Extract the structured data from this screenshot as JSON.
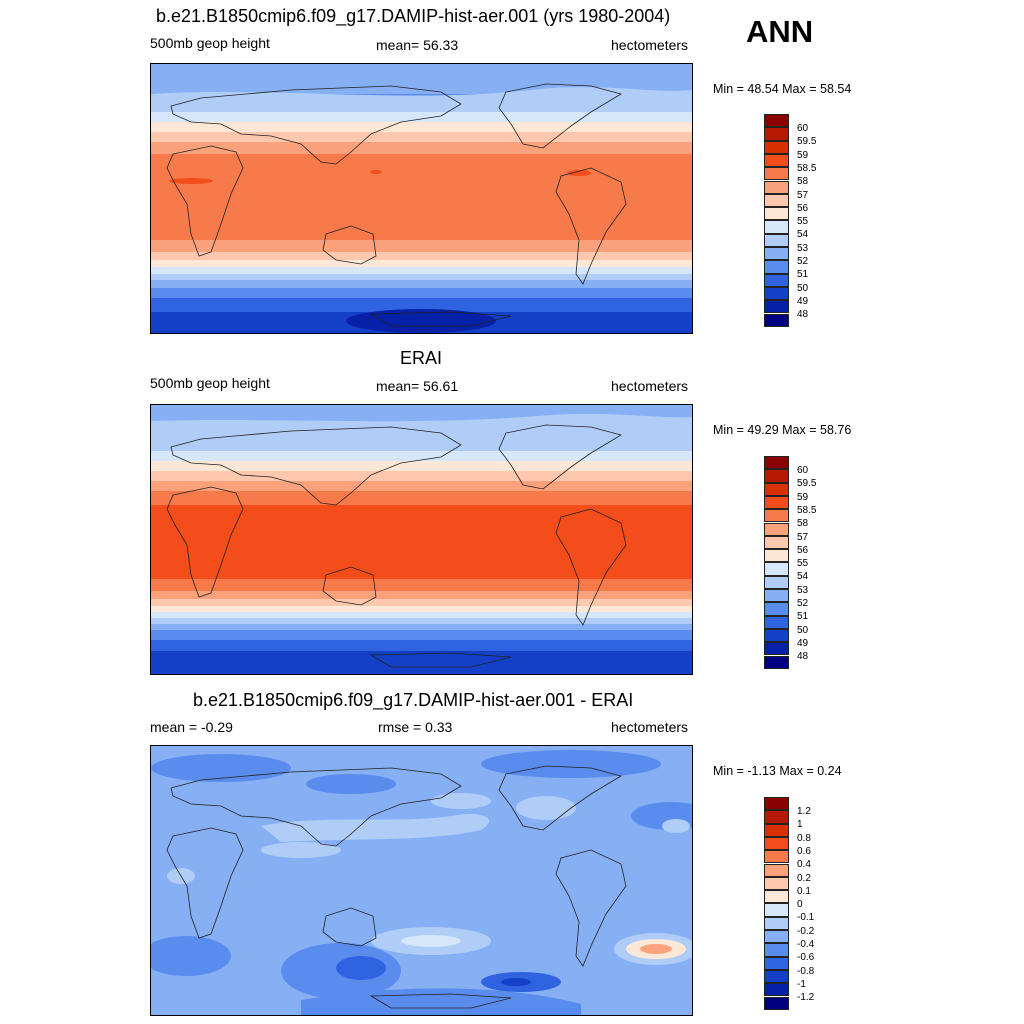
{
  "season": "ANN",
  "panels": [
    {
      "title": "b.e21.B1850cmip6.f09_g17.DAMIP-hist-aer.001 (yrs 1980-2004)",
      "left_label": "500mb geop height",
      "center_label": "mean=  56.33",
      "right_label": "hectometers",
      "minmax": "Min =  48.54 Max =  58.54",
      "colorbar_labels": [
        "60",
        "59.5",
        "59",
        "58.5",
        "58",
        "57",
        "56",
        "55",
        "54",
        "53",
        "52",
        "51",
        "50",
        "49",
        "48"
      ]
    },
    {
      "title": "ERAI",
      "left_label": "500mb geop height",
      "center_label": "mean=  56.61",
      "right_label": "hectometers",
      "minmax": "Min =  49.29 Max =  58.76",
      "colorbar_labels": [
        "60",
        "59.5",
        "59",
        "58.5",
        "58",
        "57",
        "56",
        "55",
        "54",
        "53",
        "52",
        "51",
        "50",
        "49",
        "48"
      ]
    },
    {
      "title": "b.e21.B1850cmip6.f09_g17.DAMIP-hist-aer.001 - ERAI",
      "left_label": "mean =  -0.29",
      "center_label": "rmse =   0.33",
      "right_label": "hectometers",
      "minmax": "Min =  -1.13 Max =   0.24",
      "colorbar_labels": [
        "1.2",
        "1",
        "0.8",
        "0.6",
        "0.4",
        "0.2",
        "0.1",
        "0",
        "-0.1",
        "-0.2",
        "-0.4",
        "-0.6",
        "-0.8",
        "-1",
        "-1.2"
      ]
    }
  ],
  "colors": {
    "colorbar": [
      "#8b0000",
      "#b51a00",
      "#d83000",
      "#f24d1a",
      "#f77a4a",
      "#fba27c",
      "#fdc8ad",
      "#fde8d8",
      "#d6e6fb",
      "#b0cdf8",
      "#86aff4",
      "#5a8cee",
      "#2f63e0",
      "#1440c8",
      "#0621a8",
      "#000080"
    ]
  }
}
